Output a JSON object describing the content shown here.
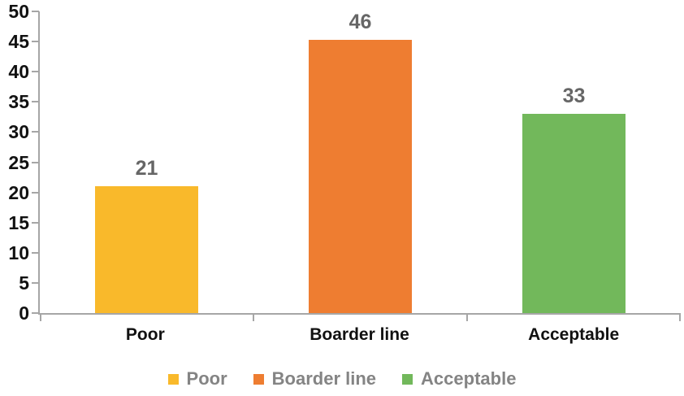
{
  "chart_data": {
    "type": "bar",
    "categories": [
      "Poor",
      "Boarder line",
      "Acceptable"
    ],
    "values": [
      21,
      46,
      33
    ],
    "data_labels": [
      "21",
      "46",
      "33"
    ],
    "series_colors": [
      "#F9B92B",
      "#EE7D31",
      "#72B85B"
    ],
    "ylim": [
      0,
      50
    ],
    "ytick_step": 5,
    "ytick_labels": [
      "0",
      "5",
      "10",
      "15",
      "20",
      "25",
      "30",
      "35",
      "40",
      "45",
      "50"
    ],
    "grid": false,
    "legend_position": "bottom",
    "legend": [
      {
        "label": "Poor",
        "color": "#F9B92B"
      },
      {
        "label": "Boarder line",
        "color": "#EE7D31"
      },
      {
        "label": "Acceptable",
        "color": "#72B85B"
      }
    ]
  },
  "colors": {
    "axis_line": "#A6A6A6",
    "tick_label_text": "#111111",
    "data_label_text": "#666666",
    "legend_text": "#848484",
    "background": "#FFFFFF"
  }
}
